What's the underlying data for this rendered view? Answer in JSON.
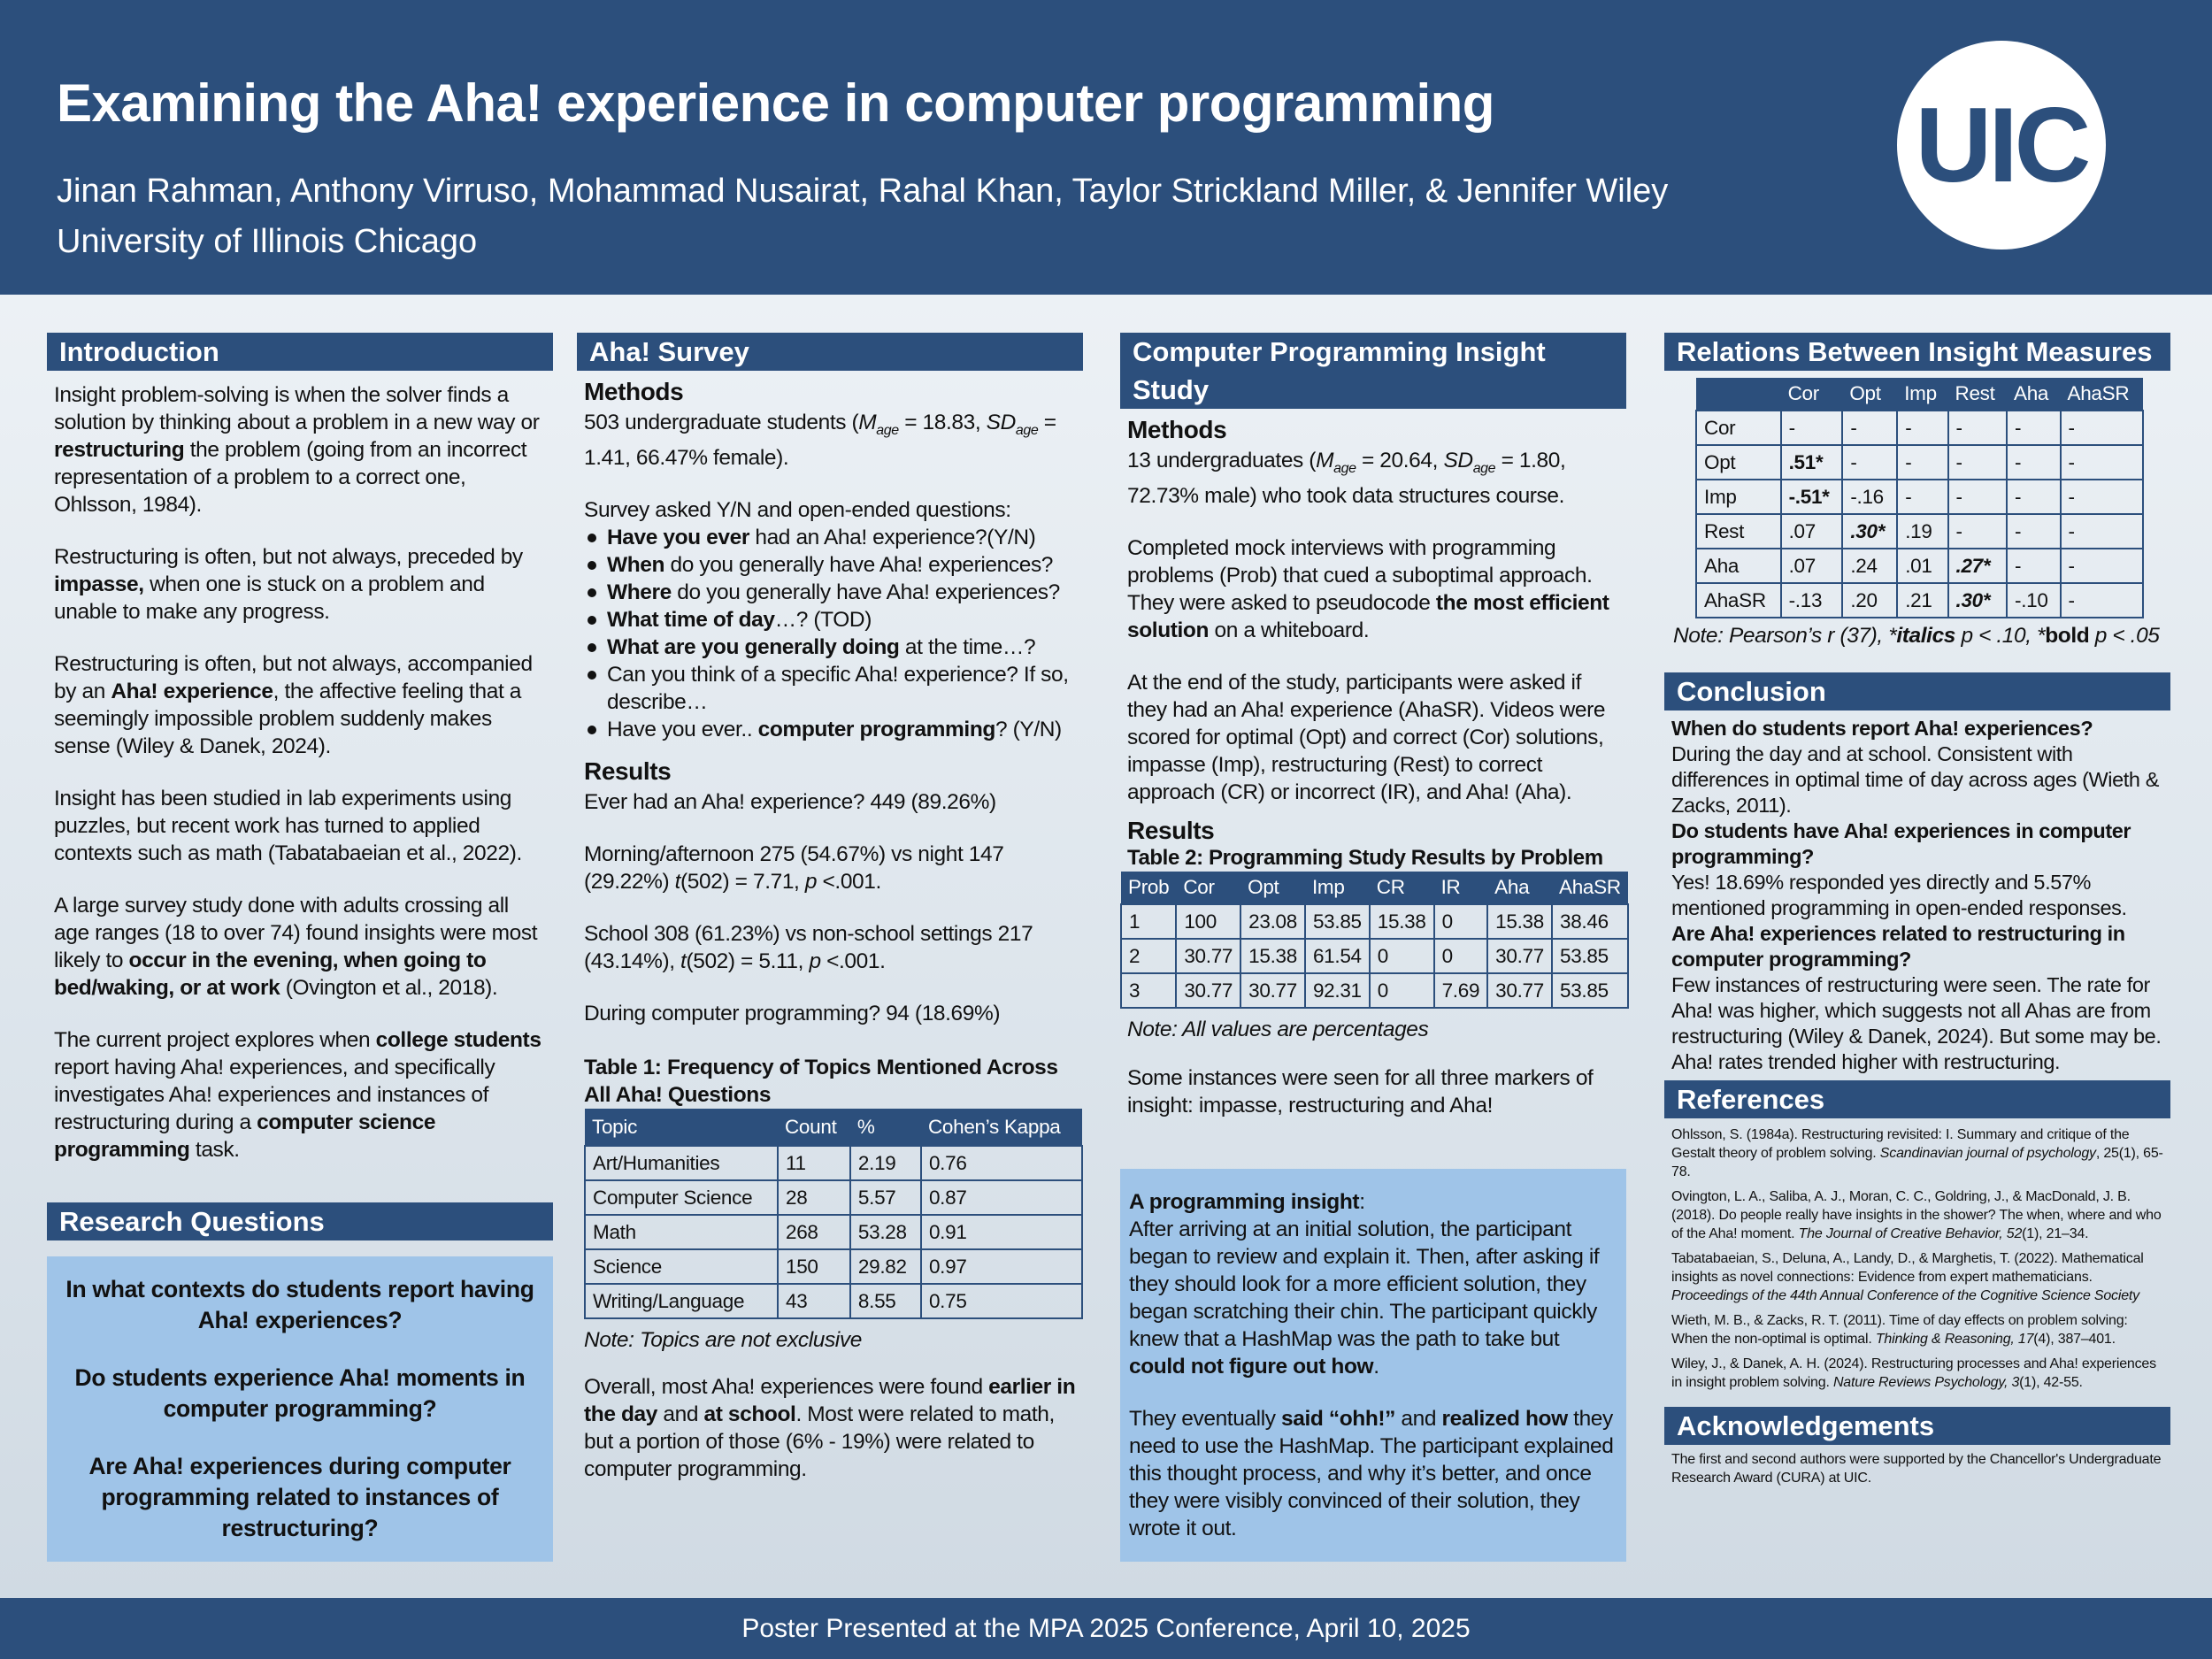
{
  "header": {
    "title": "Examining the Aha! experience in computer programming",
    "authors": "Jinan Rahman, Anthony Virruso, Mohammad Nusairat, Rahal Khan, Taylor Strickland Miller, & Jennifer Wiley",
    "affiliation": "University of Illinois Chicago",
    "logo": "UIC"
  },
  "footer": "Poster Presented at the MPA 2025 Conference, April 10, 2025",
  "colors": {
    "primary": "#2c4f7c",
    "highlight_box": "#9fc4e8"
  },
  "intro": {
    "heading": "Introduction",
    "paragraphs": [
      [
        [
          "Insight problem-solving is when the solver finds a solution by thinking about a  problem in a new way or ",
          ""
        ],
        [
          "restructuring",
          "b"
        ],
        [
          " the problem (going from an incorrect representation of a problem to a correct one, Ohlsson, 1984).",
          ""
        ]
      ],
      [
        [
          "Restructuring is often, but not always, preceded by ",
          ""
        ],
        [
          "impasse,",
          "b"
        ],
        [
          " when one is stuck on a problem and unable to make any progress.",
          ""
        ]
      ],
      [
        [
          "Restructuring is often, but not always, accompanied by an ",
          ""
        ],
        [
          "Aha! experience",
          "b"
        ],
        [
          ", the affective feeling that a seemingly impossible problem suddenly makes sense (Wiley & Danek, 2024).",
          ""
        ]
      ],
      [
        [
          "Insight has been studied in lab experiments using puzzles, but recent work has turned to applied contexts such as math (Tabatabaeian et al., 2022).",
          ""
        ]
      ],
      [
        [
          "A large survey study done with adults crossing all age ranges (18 to over 74) found insights were most likely to ",
          ""
        ],
        [
          "occur in the evening, when going to bed/waking, or at work",
          "b"
        ],
        [
          " (Ovington et al., 2018).",
          ""
        ]
      ],
      [
        [
          "The current project explores when ",
          ""
        ],
        [
          "college students",
          "b"
        ],
        [
          " report having Aha! experiences, and specifically investigates Aha! experiences and instances of restructuring during a ",
          ""
        ],
        [
          "computer science programming",
          "b"
        ],
        [
          " task.",
          ""
        ]
      ]
    ]
  },
  "research_questions": {
    "heading": "Research Questions",
    "items": [
      "In what contexts do students report having Aha! experiences?",
      "Do students experience Aha! moments in computer programming?",
      "Are Aha! experiences during computer programming related to instances of restructuring?"
    ]
  },
  "survey": {
    "heading": "Aha! Survey",
    "methods_heading": "Methods",
    "methods": [
      [
        "503 undergraduate students (",
        ""
      ],
      [
        "M",
        "i"
      ],
      [
        "age",
        "sub"
      ],
      [
        " = 18.83, ",
        ""
      ],
      [
        "SD",
        "i"
      ],
      [
        "age",
        "sub"
      ],
      [
        " = 1.41, 66.47% female).",
        ""
      ]
    ],
    "intro": "Survey asked Y/N and open-ended questions:",
    "questions": [
      [
        [
          "Have you ever",
          "b"
        ],
        [
          " had an Aha! experience?(Y/N)",
          ""
        ]
      ],
      [
        [
          "When",
          "b"
        ],
        [
          " do you generally have Aha! experiences?",
          ""
        ]
      ],
      [
        [
          "Where",
          "b"
        ],
        [
          " do you generally have Aha! experiences?",
          ""
        ]
      ],
      [
        [
          "What time of day",
          "b"
        ],
        [
          "…? (TOD)",
          ""
        ]
      ],
      [
        [
          "What are you generally doing",
          "b"
        ],
        [
          " at the time…?",
          ""
        ]
      ],
      [
        [
          "Can you think of a specific Aha! experience? If so, describe…",
          ""
        ]
      ],
      [
        [
          "Have you ever.. ",
          ""
        ],
        [
          "computer programming",
          "b"
        ],
        [
          "? (Y/N)",
          ""
        ]
      ]
    ],
    "results_heading": "Results",
    "results": [
      [
        [
          "Ever had an Aha! experience? 449 (89.26%)",
          ""
        ]
      ],
      [
        [
          "Morning/afternoon 275 (54.67%) vs night 147 (29.22%) ",
          ""
        ],
        [
          "t",
          "i"
        ],
        [
          "(502) = 7.71, ",
          ""
        ],
        [
          "p",
          "i"
        ],
        [
          " <.001.",
          ""
        ]
      ],
      [
        [
          "School 308 (61.23%) vs non-school settings 217 (43.14%), ",
          ""
        ],
        [
          "t",
          "i"
        ],
        [
          "(502) = 5.11, ",
          ""
        ],
        [
          "p",
          "i"
        ],
        [
          " <.001.",
          ""
        ]
      ],
      [
        [
          "During computer programming? 94 (18.69%)",
          ""
        ]
      ]
    ],
    "table1": {
      "title": "Table 1: Frequency of Topics Mentioned Across All Aha! Questions",
      "headers": [
        "Topic",
        "Count",
        "%",
        "Cohen’s Kappa"
      ],
      "rows": [
        [
          "Art/Humanities",
          "11",
          "2.19",
          "0.76"
        ],
        [
          "Computer Science",
          "28",
          "5.57",
          "0.87"
        ],
        [
          "Math",
          "268",
          "53.28",
          "0.91"
        ],
        [
          "Science",
          "150",
          "29.82",
          "0.97"
        ],
        [
          "Writing/Language",
          "43",
          "8.55",
          "0.75"
        ]
      ],
      "note": "Note: Topics are not exclusive"
    },
    "summary": [
      [
        "Overall, most Aha! experiences were found ",
        ""
      ],
      [
        "earlier in the day",
        "b"
      ],
      [
        " and ",
        ""
      ],
      [
        "at school",
        "b"
      ],
      [
        ". Most were related to math, but a portion of those (6% - 19%) were related to computer programming.",
        ""
      ]
    ]
  },
  "study": {
    "heading": "Computer Programming Insight Study",
    "methods_heading": "Methods",
    "paragraphs": [
      [
        [
          "13 undergraduates (",
          ""
        ],
        [
          "M",
          "i"
        ],
        [
          "age",
          "sub"
        ],
        [
          " = 20.64, ",
          ""
        ],
        [
          "SD",
          "i"
        ],
        [
          "age",
          "sub"
        ],
        [
          " = 1.80, 72.73% male) who took data structures course.",
          ""
        ]
      ],
      [
        [
          "Completed mock interviews with programming problems (Prob) that cued a suboptimal approach. They were asked to pseudocode ",
          ""
        ],
        [
          "the most efficient solution",
          "b"
        ],
        [
          " on a whiteboard.",
          ""
        ]
      ],
      [
        [
          "At the end of the study, participants were asked if they had an Aha! experience (AhaSR). Videos were scored for optimal (Opt) and correct (Cor) solutions, impasse (Imp), restructuring (Rest) to correct approach (CR) or incorrect (IR), and Aha! (Aha).",
          ""
        ]
      ]
    ],
    "results_heading": "Results",
    "table2": {
      "title": "Table 2: Programming Study Results by Problem",
      "headers": [
        "Prob",
        "Cor",
        "Opt",
        "Imp",
        "CR",
        "IR",
        "Aha",
        "AhaSR"
      ],
      "rows": [
        [
          "1",
          "100",
          "23.08",
          "53.85",
          "15.38",
          "0",
          "15.38",
          "38.46"
        ],
        [
          "2",
          "30.77",
          "15.38",
          "61.54",
          "0",
          "0",
          "30.77",
          "53.85"
        ],
        [
          "3",
          "30.77",
          "30.77",
          "92.31",
          "0",
          "7.69",
          "30.77",
          "53.85"
        ]
      ],
      "note": "Note: All values are percentages"
    },
    "summary": "Some instances were seen for all three markers of insight: impasse, restructuring and Aha!",
    "insight_box": {
      "p1": [
        [
          "A programming insight",
          "b"
        ],
        [
          ":",
          ""
        ],
        [
          "After arriving at an initial solution, the participant began to review and explain it. Then, after asking if they should look for a more efficient solution, they began scratching their chin. The participant quickly knew that a HashMap was the path to take but ",
          "br"
        ],
        [
          "could not figure out how",
          "b"
        ],
        [
          ".",
          ""
        ]
      ],
      "p2": [
        [
          "They eventually ",
          ""
        ],
        [
          "said “ohh!”",
          "b"
        ],
        [
          " and ",
          ""
        ],
        [
          "realized how",
          "b"
        ],
        [
          " they need to use the HashMap. The participant explained this thought process, and why it’s better, and once they were visibly convinced of their solution, they wrote it out.",
          ""
        ]
      ]
    }
  },
  "relations": {
    "heading": "Relations Between Insight Measures",
    "headers": [
      "",
      "Cor",
      "Opt",
      "Imp",
      "Rest",
      "Aha",
      "AhaSR"
    ],
    "rows": [
      [
        [
          "Cor",
          ""
        ],
        [
          "-",
          ""
        ],
        [
          "-",
          ""
        ],
        [
          "-",
          ""
        ],
        [
          "-",
          ""
        ],
        [
          "-",
          ""
        ],
        [
          "-",
          ""
        ]
      ],
      [
        [
          "Opt",
          ""
        ],
        [
          ".51*",
          "b"
        ],
        [
          "-",
          ""
        ],
        [
          "-",
          ""
        ],
        [
          "-",
          ""
        ],
        [
          "-",
          ""
        ],
        [
          "-",
          ""
        ]
      ],
      [
        [
          "Imp",
          ""
        ],
        [
          "-.51*",
          "b"
        ],
        [
          "-.16",
          ""
        ],
        [
          "-",
          ""
        ],
        [
          "-",
          ""
        ],
        [
          "-",
          ""
        ],
        [
          "-",
          ""
        ]
      ],
      [
        [
          "Rest",
          ""
        ],
        [
          ".07",
          ""
        ],
        [
          ".30*",
          "bi"
        ],
        [
          ".19",
          ""
        ],
        [
          "-",
          ""
        ],
        [
          "-",
          ""
        ],
        [
          "-",
          ""
        ]
      ],
      [
        [
          "Aha",
          ""
        ],
        [
          ".07",
          ""
        ],
        [
          ".24",
          ""
        ],
        [
          ".01",
          ""
        ],
        [
          ".27*",
          "bi"
        ],
        [
          "-",
          ""
        ],
        [
          "-",
          ""
        ]
      ],
      [
        [
          "AhaSR",
          ""
        ],
        [
          "-.13",
          ""
        ],
        [
          ".20",
          ""
        ],
        [
          ".21",
          ""
        ],
        [
          ".30*",
          "bi"
        ],
        [
          "-.10",
          ""
        ],
        [
          "-",
          ""
        ]
      ]
    ],
    "note": [
      [
        "Note:  Pearson’s r (37),  *",
        "i"
      ],
      [
        "italics",
        "bi"
      ],
      [
        " p < .10,  *",
        "i"
      ],
      [
        "bold",
        "b"
      ],
      [
        " p < .05",
        "i"
      ]
    ]
  },
  "conclusion": {
    "heading": "Conclusion",
    "items": [
      {
        "q": "When do students report Aha! experiences?",
        "a": "During the day and at school. Consistent with differences in optimal time of day across ages (Wieth & Zacks, 2011)."
      },
      {
        "q": "Do students have Aha! experiences in computer programming?",
        "a": "Yes! 18.69% responded yes directly and 5.57% mentioned programming in open-ended responses."
      },
      {
        "q": "Are Aha! experiences related to restructuring in computer programming?",
        "a": "Few instances of restructuring were seen. The rate for Aha! was higher, which suggests not all Ahas are from restructuring (Wiley & Danek, 2024). But some may be. Aha! rates trended higher with restructuring."
      }
    ]
  },
  "references": {
    "heading": "References",
    "items": [
      [
        [
          "Ohlsson, S. (1984a). Restructuring revisited: I. Summary and critique of the Gestalt theory of problem solving. ",
          ""
        ],
        [
          "Scandinavian journal of psychology",
          "i"
        ],
        [
          ", 25(1), 65-78.",
          ""
        ]
      ],
      [
        [
          "Ovington, L. A., Saliba, A. J., Moran, C. C., Goldring, J., & MacDonald, J. B. (2018). Do people really have insights in the shower? The when, where and who of the Aha! moment. ",
          ""
        ],
        [
          "The Journal of Creative Behavior, 52",
          "i"
        ],
        [
          "(1), 21–34.",
          ""
        ]
      ],
      [
        [
          "Tabatabaeian, S., Deluna, A., Landy, D., & Marghetis, T. (2022). Mathematical insights as novel connections: Evidence from expert mathematicians. ",
          ""
        ],
        [
          "Proceedings of the 44th Annual Conference of the Cognitive Science Society",
          "i"
        ]
      ],
      [
        [
          "Wieth, M. B., & Zacks, R. T. (2011). Time of day effects on problem solving: When the non-optimal is optimal. ",
          ""
        ],
        [
          "Thinking & Reasoning, 17",
          "i"
        ],
        [
          "(4), 387–401.",
          ""
        ]
      ],
      [
        [
          "Wiley, J., & Danek, A. H. (2024). Restructuring processes and Aha! experiences in insight problem solving. ",
          ""
        ],
        [
          "Nature Reviews Psychology, 3",
          "i"
        ],
        [
          "(1), 42-55.",
          ""
        ]
      ]
    ]
  },
  "acknowledgements": {
    "heading": "Acknowledgements",
    "text": "The first and second authors were supported by the Chancellor's Undergraduate Research Award (CURA) at UIC."
  }
}
